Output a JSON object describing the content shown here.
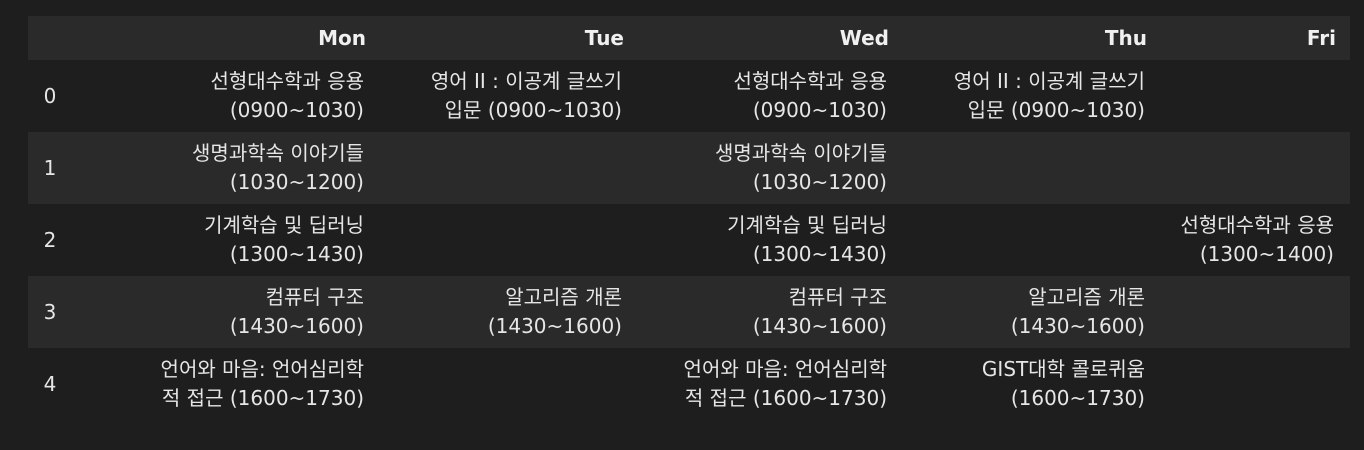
{
  "table": {
    "columns": [
      "",
      "Mon",
      "Tue",
      "Wed",
      "Thu",
      "Fri"
    ],
    "rows": [
      {
        "index": "0",
        "Mon": "선형대수학과 응용\n(0900~1030)",
        "Tue": "영어 II : 이공계 글쓰기\n입문 (0900~1030)",
        "Wed": "선형대수학과 응용\n(0900~1030)",
        "Thu": "영어 II : 이공계 글쓰기\n입문 (0900~1030)",
        "Fri": ""
      },
      {
        "index": "1",
        "Mon": "생명과학속 이야기들\n(1030~1200)",
        "Tue": "",
        "Wed": "생명과학속 이야기들\n(1030~1200)",
        "Thu": "",
        "Fri": ""
      },
      {
        "index": "2",
        "Mon": "기계학습 및 딥러닝\n(1300~1430)",
        "Tue": "",
        "Wed": "기계학습 및 딥러닝\n(1300~1430)",
        "Thu": "",
        "Fri": "선형대수학과 응용\n(1300~1400)"
      },
      {
        "index": "3",
        "Mon": "컴퓨터 구조\n(1430~1600)",
        "Tue": "알고리즘 개론\n(1430~1600)",
        "Wed": "컴퓨터 구조\n(1430~1600)",
        "Thu": "알고리즘 개론\n(1430~1600)",
        "Fri": ""
      },
      {
        "index": "4",
        "Mon": "언어와 마음: 언어심리학\n적 접근 (1600~1730)",
        "Tue": "",
        "Wed": "언어와 마음: 언어심리학\n적 접근 (1600~1730)",
        "Thu": "GIST대학 콜로퀴움\n(1600~1730)",
        "Fri": ""
      }
    ]
  },
  "colors": {
    "background": "#1e1e1e",
    "stripe": "#2a2a2a",
    "text": "#e6e6e6"
  }
}
